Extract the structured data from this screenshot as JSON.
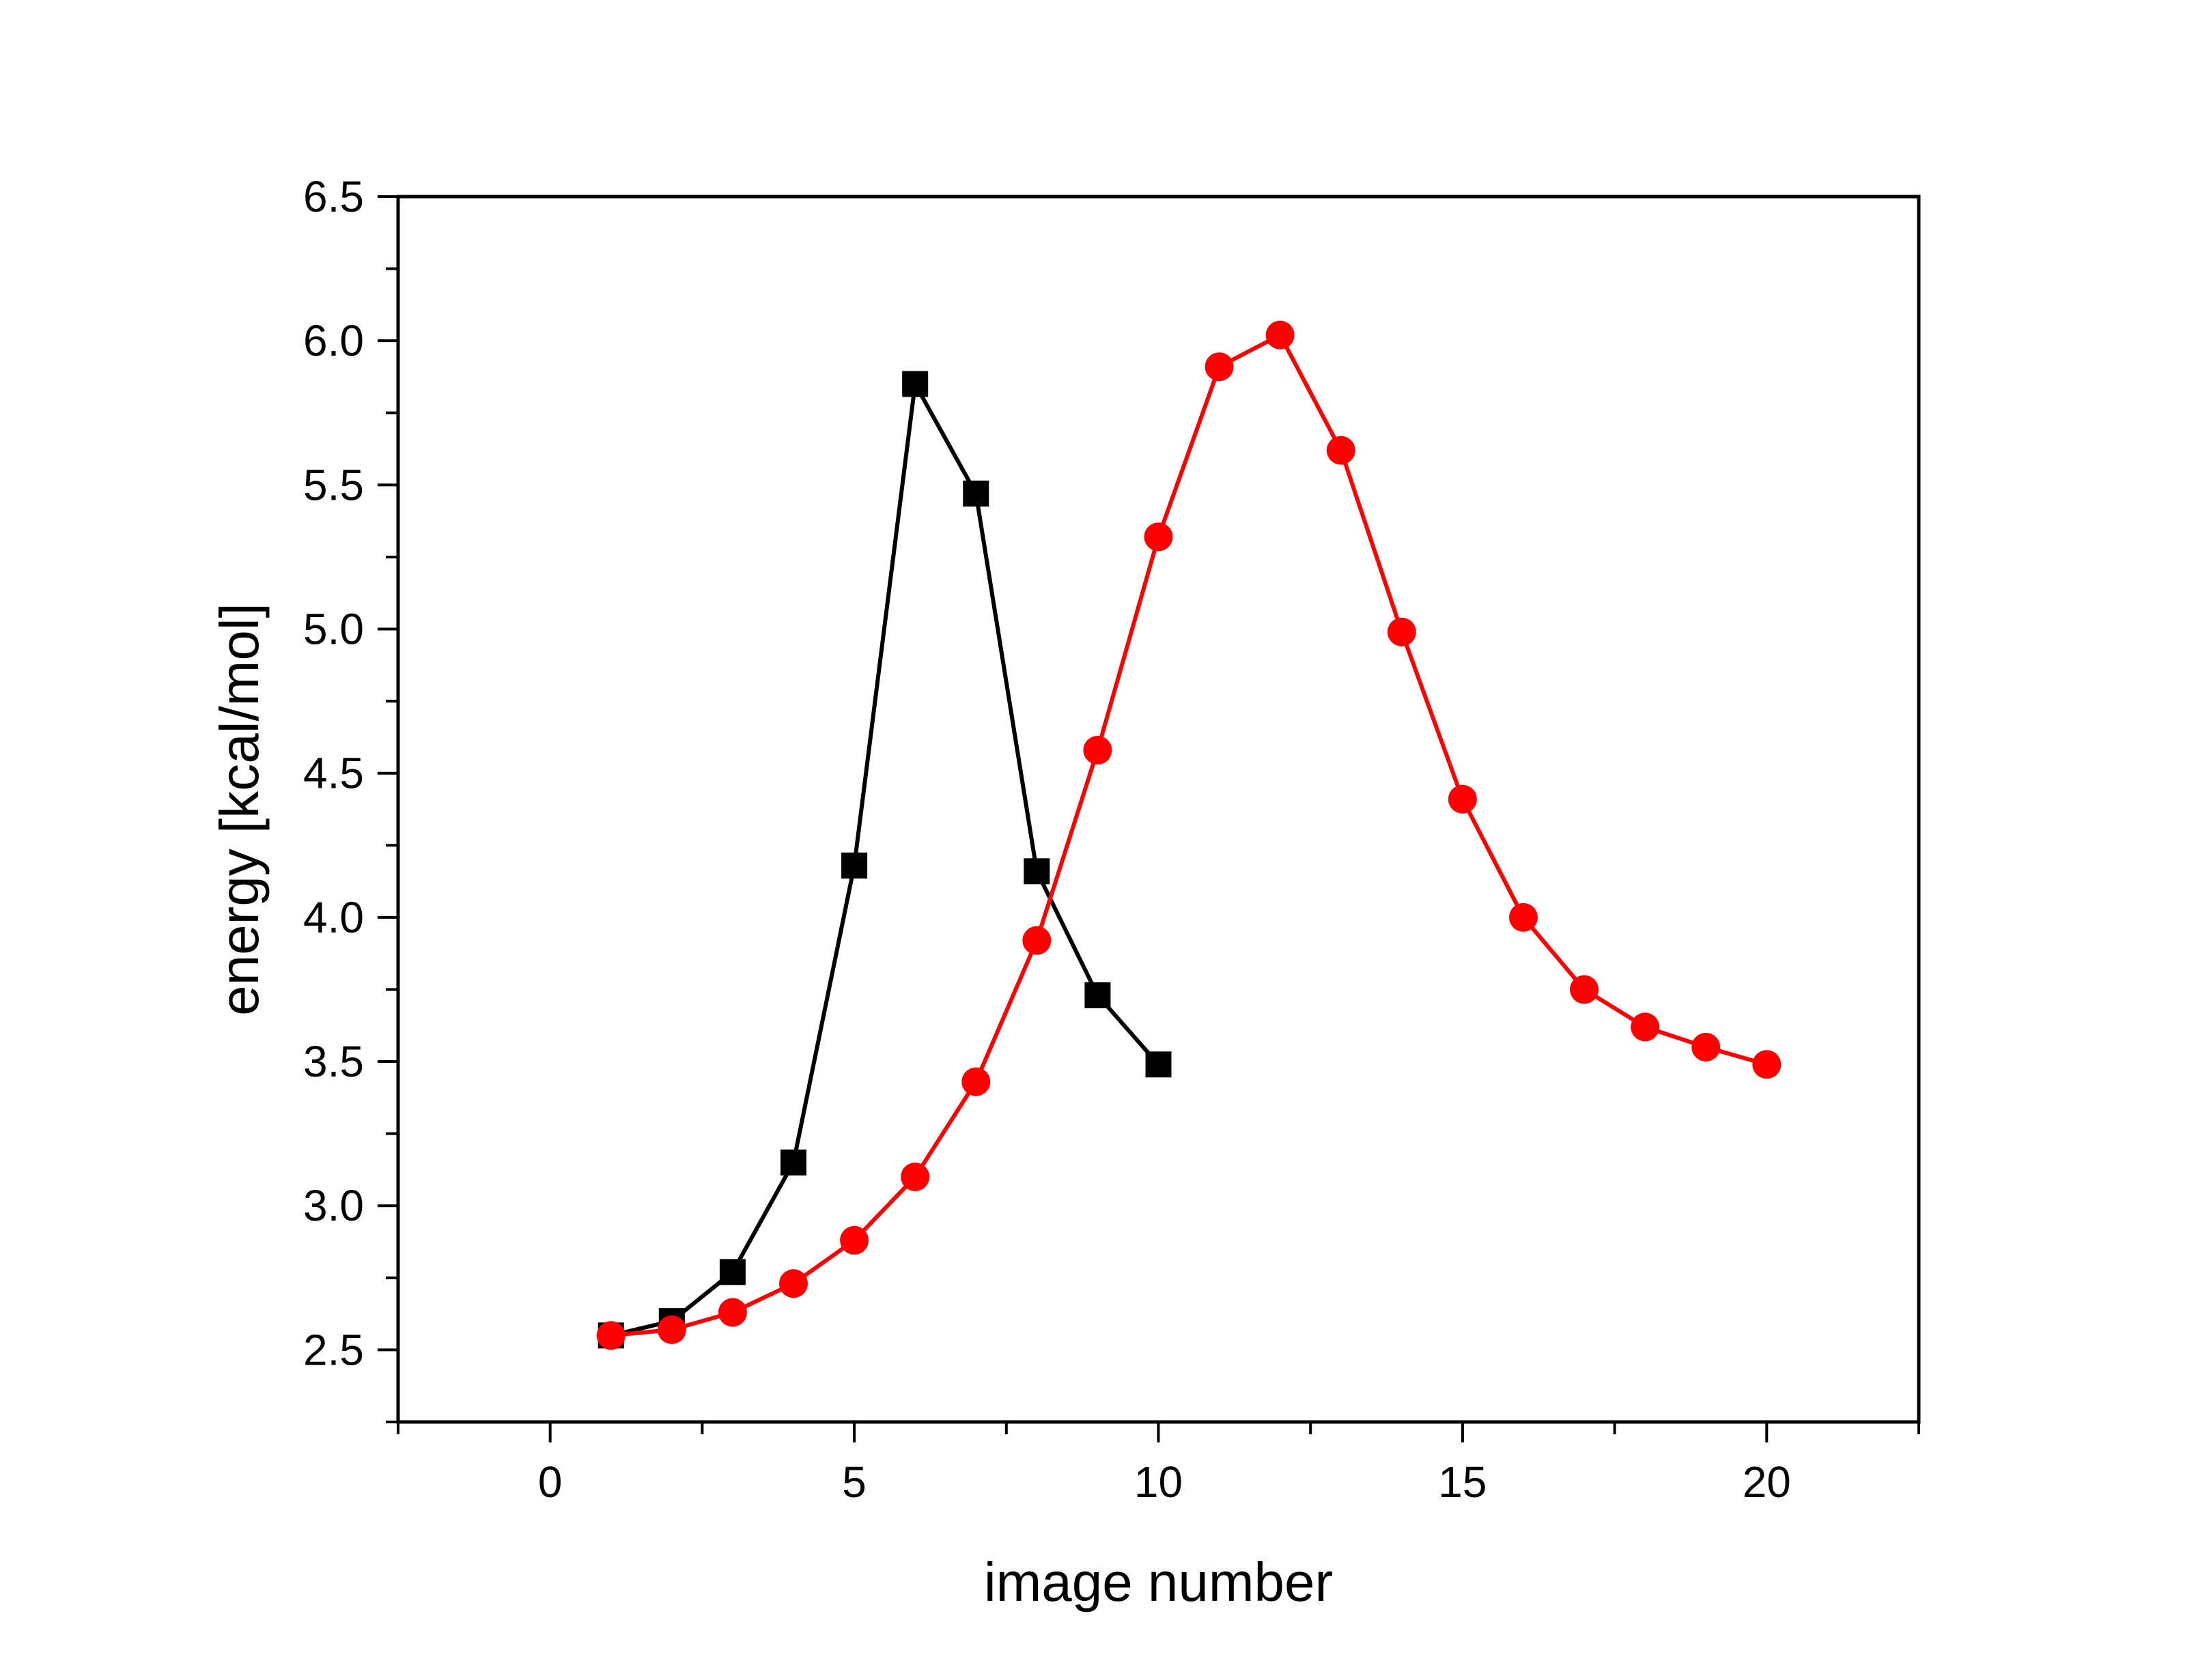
{
  "chart_data": {
    "type": "line",
    "title": "",
    "xlabel": "image number",
    "ylabel": "energy [kcal/mol]",
    "xlim": [
      -2.5,
      22.5
    ],
    "ylim": [
      2.25,
      6.5
    ],
    "x_ticks": [
      0,
      5,
      10,
      15,
      20
    ],
    "x_tick_labels": [
      "0",
      "5",
      "10",
      "15",
      "20"
    ],
    "y_ticks": [
      2.5,
      3.0,
      3.5,
      4.0,
      4.5,
      5.0,
      5.5,
      6.0,
      6.5
    ],
    "y_tick_labels": [
      "2.5",
      "3.0",
      "3.5",
      "4.0",
      "4.5",
      "5.0",
      "5.5",
      "6.0",
      "6.5"
    ],
    "grid": false,
    "legend": "none",
    "series": [
      {
        "marker": "square",
        "color": "#000000",
        "x": [
          1,
          2,
          3,
          4,
          5,
          6,
          7,
          8,
          9,
          10
        ],
        "y": [
          2.55,
          2.6,
          2.77,
          3.15,
          4.18,
          5.85,
          5.47,
          4.16,
          3.73,
          3.49
        ]
      },
      {
        "marker": "circle",
        "color": "#ff0000",
        "x": [
          1,
          2,
          3,
          4,
          5,
          6,
          7,
          8,
          9,
          10,
          11,
          12,
          13,
          14,
          15,
          16,
          17,
          18,
          19,
          20
        ],
        "y": [
          2.55,
          2.57,
          2.63,
          2.73,
          2.88,
          3.1,
          3.43,
          3.92,
          4.58,
          5.32,
          5.91,
          6.02,
          5.62,
          4.99,
          4.41,
          4.0,
          3.75,
          3.62,
          3.55,
          3.49
        ]
      }
    ]
  }
}
